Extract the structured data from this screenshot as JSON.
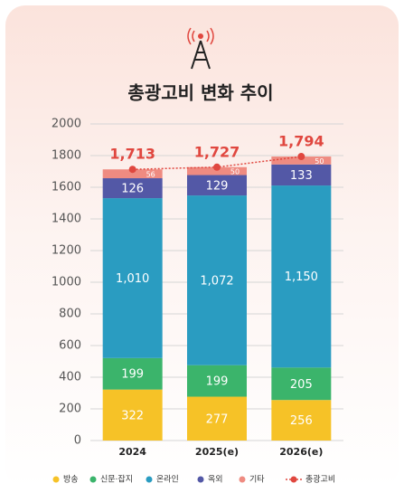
{
  "chart_data": {
    "type": "stacked_bar",
    "title": "총광고비 변화 추이",
    "categories": [
      "2024",
      "2025(e)",
      "2026(e)"
    ],
    "series": [
      {
        "name": "방송",
        "color": "#f6c227",
        "values": [
          322,
          277,
          256
        ]
      },
      {
        "name": "신문·잡지",
        "color": "#3bb46b",
        "values": [
          199,
          199,
          205
        ]
      },
      {
        "name": "온라인",
        "color": "#2a9cc1",
        "values": [
          1010,
          1072,
          1150
        ],
        "value_labels": [
          "1,010",
          "1,072",
          "1,150"
        ]
      },
      {
        "name": "옥외",
        "color": "#5358a6",
        "values": [
          126,
          129,
          133
        ]
      },
      {
        "name": "기타",
        "color": "#ef8b81",
        "values": [
          56,
          50,
          50
        ]
      }
    ],
    "total": {
      "name": "총광고비",
      "color": "#e0473f",
      "values": [
        1713,
        1727,
        1794
      ],
      "value_labels": [
        "1,713",
        "1,727",
        "1,794"
      ]
    },
    "ylim": [
      0,
      2000
    ],
    "yticks": [
      0,
      200,
      400,
      600,
      800,
      1000,
      1200,
      1400,
      1600,
      1800,
      2000
    ],
    "grid": true
  }
}
